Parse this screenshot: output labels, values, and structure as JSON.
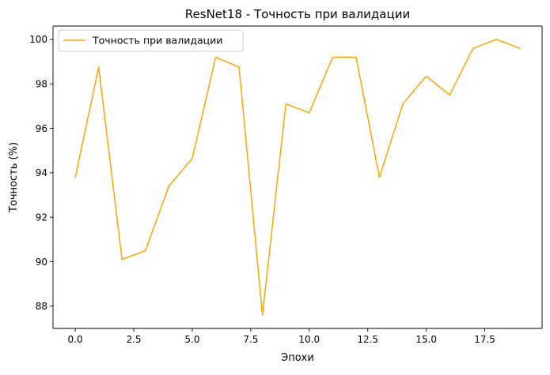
{
  "chart_data": {
    "type": "line",
    "title": "ResNet18 - Точность при валидации",
    "xlabel": "Эпохи",
    "ylabel": "Точность (%)",
    "xlim": [
      -0.95,
      19.95
    ],
    "ylim": [
      87.0,
      100.6
    ],
    "x_ticks": [
      0.0,
      2.5,
      5.0,
      7.5,
      10.0,
      12.5,
      15.0,
      17.5
    ],
    "x_tick_labels": [
      "0.0",
      "2.5",
      "5.0",
      "7.5",
      "10.0",
      "12.5",
      "15.0",
      "17.5"
    ],
    "y_ticks": [
      88,
      90,
      92,
      94,
      96,
      98,
      100
    ],
    "y_tick_labels": [
      "88",
      "90",
      "92",
      "94",
      "96",
      "98",
      "100"
    ],
    "grid": false,
    "legend_position": "top-left",
    "series": [
      {
        "name": "Точность при валидации",
        "color": "#ffa500",
        "x": [
          0,
          1,
          2,
          3,
          4,
          5,
          6,
          7,
          8,
          9,
          10,
          11,
          12,
          13,
          14,
          15,
          16,
          17,
          18,
          19
        ],
        "values": [
          93.8,
          98.75,
          90.1,
          90.5,
          93.4,
          94.65,
          99.2,
          98.75,
          87.6,
          97.1,
          96.7,
          99.2,
          99.2,
          93.8,
          97.1,
          98.35,
          97.5,
          99.6,
          100.0,
          99.6
        ]
      }
    ]
  }
}
